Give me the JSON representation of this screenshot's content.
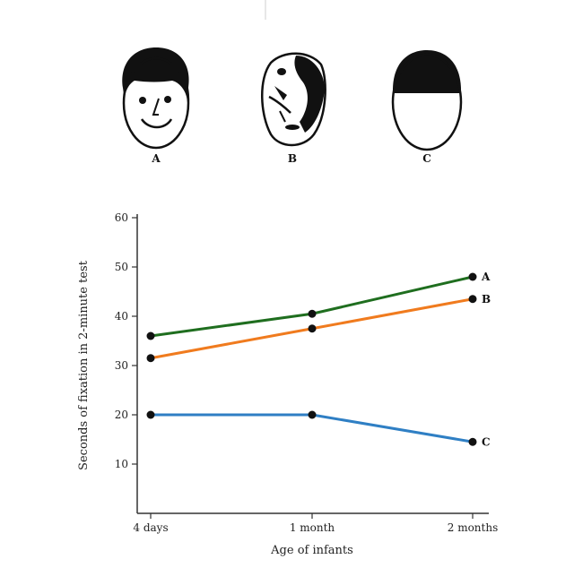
{
  "faces": [
    {
      "id": "A",
      "label": "A",
      "kind": "normal-face"
    },
    {
      "id": "B",
      "label": "B",
      "kind": "scrambled-face"
    },
    {
      "id": "C",
      "label": "C",
      "kind": "blank-face"
    }
  ],
  "chart_data": {
    "type": "line",
    "categories": [
      "4 days",
      "1 month",
      "2 months"
    ],
    "xlabel": "Age of infants",
    "ylabel": "Seconds of fixation in 2-minute test",
    "ylim": [
      0,
      60
    ],
    "yticks": [
      10,
      20,
      30,
      40,
      50,
      60
    ],
    "grid": false,
    "series": [
      {
        "name": "A",
        "color": "#1f6e1f",
        "values": [
          36,
          40.5,
          48
        ]
      },
      {
        "name": "B",
        "color": "#f07b1e",
        "values": [
          31.5,
          37.5,
          43.5
        ]
      },
      {
        "name": "C",
        "color": "#2f7fc4",
        "values": [
          20,
          20,
          14.5
        ]
      }
    ]
  }
}
